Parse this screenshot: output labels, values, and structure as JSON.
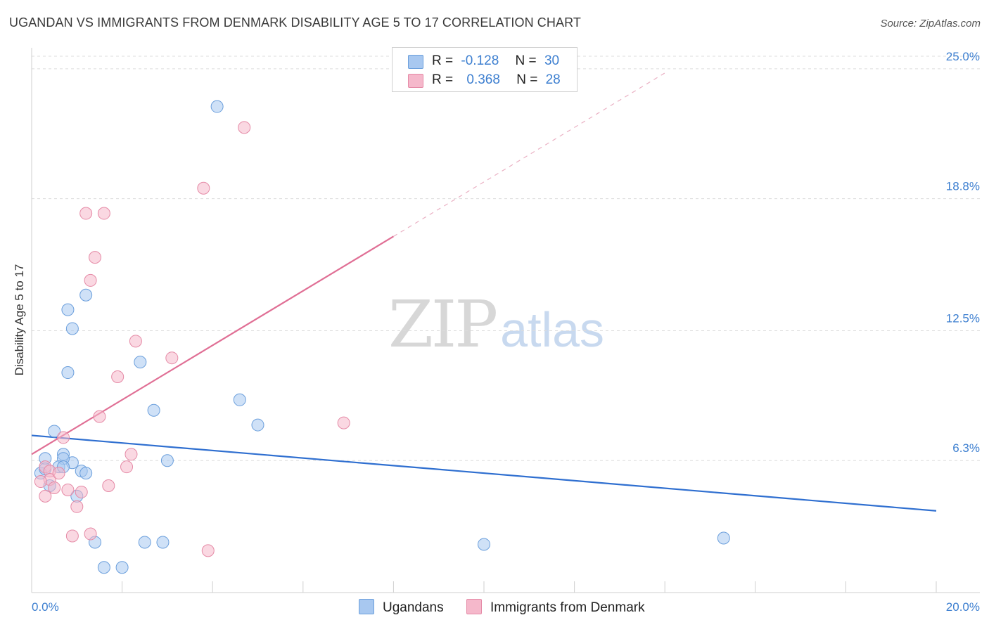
{
  "title": "UGANDAN VS IMMIGRANTS FROM DENMARK DISABILITY AGE 5 TO 17 CORRELATION CHART",
  "source": "Source: ZipAtlas.com",
  "watermark": {
    "part1": "ZIP",
    "part2": "atlas"
  },
  "legend": {
    "rows": [
      {
        "r_label": "R =",
        "r_value": "-0.128",
        "n_label": "N =",
        "n_value": "30",
        "color": "#a8c8f0"
      },
      {
        "r_label": "R =",
        "r_value": "0.368",
        "n_label": "N =",
        "n_value": "28",
        "color": "#f5b8cb"
      }
    ],
    "bottom": [
      "Ugandans",
      "Immigrants from Denmark"
    ]
  },
  "chart_data": {
    "type": "scatter",
    "title": "UGANDAN VS IMMIGRANTS FROM DENMARK DISABILITY AGE 5 TO 17 CORRELATION CHART",
    "xlabel": "",
    "ylabel": "Disability Age 5 to 17",
    "xlim": [
      0,
      20
    ],
    "ylim": [
      0,
      25.6
    ],
    "x_tick_labels": [
      "0.0%",
      "20.0%"
    ],
    "y_ticks": [
      6.3,
      12.5,
      18.8,
      25.0
    ],
    "y_tick_labels": [
      "6.3%",
      "12.5%",
      "18.8%",
      "25.0%"
    ],
    "grid": true,
    "legend_position": "top-center",
    "series": [
      {
        "name": "Ugandans",
        "color": "#a8c8f0",
        "stroke": "#6b9fdc",
        "trend_color": "#2f6fd0",
        "x": [
          4.1,
          0.8,
          0.9,
          0.8,
          0.5,
          1.2,
          2.4,
          2.7,
          4.6,
          5.0,
          0.7,
          0.9,
          0.7,
          0.6,
          0.3,
          0.4,
          0.7,
          1.1,
          1.2,
          3.0,
          0.2,
          0.3,
          1.0,
          1.4,
          2.5,
          2.9,
          10.0,
          15.3,
          1.6,
          2.0
        ],
        "y": [
          23.2,
          13.5,
          12.6,
          10.5,
          7.7,
          14.2,
          11.0,
          8.7,
          9.2,
          8.0,
          6.6,
          6.2,
          6.4,
          6.0,
          6.4,
          5.1,
          6.0,
          5.8,
          5.7,
          6.3,
          5.7,
          5.9,
          4.6,
          2.4,
          2.4,
          2.4,
          2.3,
          2.6,
          1.2,
          1.2
        ],
        "trend": {
          "x": [
            0,
            20
          ],
          "y": [
            7.5,
            3.9
          ]
        }
      },
      {
        "name": "Immigrants from Denmark",
        "color": "#f5b8cb",
        "stroke": "#e58aa6",
        "trend_color": "#e06f95",
        "x": [
          4.7,
          3.8,
          1.2,
          1.6,
          1.4,
          1.3,
          2.3,
          3.1,
          1.9,
          1.5,
          6.9,
          0.7,
          0.3,
          0.4,
          0.4,
          0.2,
          0.6,
          2.2,
          2.1,
          0.5,
          0.8,
          1.1,
          1.7,
          0.3,
          1.0,
          1.3,
          0.9,
          3.9
        ],
        "y": [
          22.2,
          19.3,
          18.1,
          18.1,
          16.0,
          14.9,
          12.0,
          11.2,
          10.3,
          8.4,
          8.1,
          7.4,
          6.0,
          5.8,
          5.4,
          5.3,
          5.7,
          6.6,
          6.0,
          5.0,
          4.9,
          4.8,
          5.1,
          4.6,
          4.1,
          2.8,
          2.7,
          2.0
        ],
        "trend": {
          "x": [
            0,
            8.0
          ],
          "y": [
            6.6,
            17.0
          ]
        },
        "trend_extension": {
          "x": [
            8.0,
            14.0
          ],
          "y": [
            17.0,
            24.8
          ]
        }
      }
    ]
  }
}
